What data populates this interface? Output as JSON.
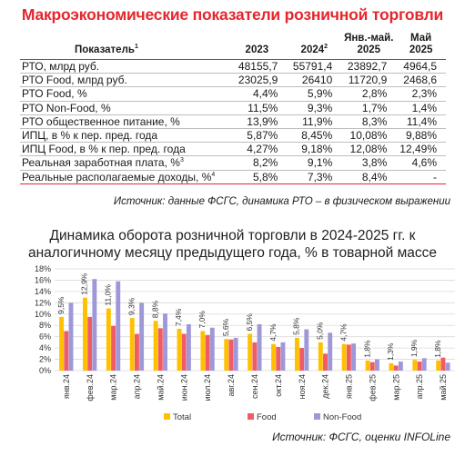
{
  "title": "Макроэкономические показатели розничной торговли",
  "table": {
    "header": {
      "indicator": "Показатель",
      "indicator_sup": "1",
      "c2023": "2023",
      "c2024": "2024",
      "c2024_sup": "2",
      "cjan_l1": "Янв.-май.",
      "cjan_l2": "2025",
      "cmay_l1": "Май",
      "cmay_l2": "2025"
    },
    "rows": [
      {
        "label": "РТО, млрд руб.",
        "sup": "",
        "v2023": "48155,7",
        "v2024": "55791,4",
        "vjan": "23892,7",
        "vmay": "4964,5"
      },
      {
        "label": "РТО Food, млрд руб.",
        "sup": "",
        "v2023": "23025,9",
        "v2024": "26410",
        "vjan": "11720,9",
        "vmay": "2468,6"
      },
      {
        "label": "РТО Food, %",
        "sup": "",
        "v2023": "4,4%",
        "v2024": "5,9%",
        "vjan": "2,8%",
        "vmay": "2,3%"
      },
      {
        "label": "РТО Non-Food, %",
        "sup": "",
        "v2023": "11,5%",
        "v2024": "9,3%",
        "vjan": "1,7%",
        "vmay": "1,4%"
      },
      {
        "label": "РТО общественное питание, %",
        "sup": "",
        "v2023": "13,9%",
        "v2024": "11,9%",
        "vjan": "8,3%",
        "vmay": "11,4%"
      },
      {
        "label": "ИПЦ, в % к пер. пред. года",
        "sup": "",
        "v2023": "5,87%",
        "v2024": "8,45%",
        "vjan": "10,08%",
        "vmay": "9,88%"
      },
      {
        "label": "ИПЦ Food, в % к пер. пред. года",
        "sup": "",
        "v2023": "4,27%",
        "v2024": "9,18%",
        "vjan": "12,08%",
        "vmay": "12,49%"
      },
      {
        "label": "Реальная заработная плата, %",
        "sup": "3",
        "v2023": "8,2%",
        "v2024": "9,1%",
        "vjan": "3,8%",
        "vmay": "4,6%"
      },
      {
        "label": "Реальные располагаемые доходы, %",
        "sup": "4",
        "v2023": "5,8%",
        "v2024": "7,3%",
        "vjan": "8,4%",
        "vmay": "-"
      }
    ],
    "note": "Источник: данные ФСГС, динамика РТО – в физическом выражении"
  },
  "chart_title_l1": "Динамика оборота розничной торговли в 2024-2025 гг. к",
  "chart_title_l2": "аналогичному месяцу предыдущего года, % в товарной массе",
  "source": "Источник: ФСГС, оценки INFOLine",
  "colors": {
    "red": "#e5262d",
    "total": "#ffc000",
    "food": "#f05c65",
    "nonfood": "#9f98d8",
    "grid": "#d9d9d9"
  },
  "chart_data": {
    "type": "bar",
    "categories": [
      "янв.24",
      "фев.24",
      "мар.24",
      "апр.24",
      "май.24",
      "июн.24",
      "июл.24",
      "авг.24",
      "сен.24",
      "окт.24",
      "ноя.24",
      "дек.24",
      "янв.25",
      "фев.25",
      "мар.25",
      "апр.25",
      "май.25"
    ],
    "series": [
      {
        "name": "Total",
        "values": [
          9.5,
          12.9,
          11.0,
          9.3,
          8.8,
          7.4,
          7.0,
          5.6,
          6.5,
          4.7,
          5.8,
          5.0,
          4.7,
          1.8,
          1.3,
          1.9,
          1.8
        ]
      },
      {
        "name": "Food",
        "values": [
          7.0,
          9.5,
          7.9,
          6.5,
          7.5,
          6.5,
          6.3,
          5.5,
          5.0,
          4.2,
          4.0,
          3.0,
          4.6,
          1.5,
          0.9,
          1.6,
          2.3
        ]
      },
      {
        "name": "Non-Food",
        "values": [
          12.0,
          16.2,
          15.8,
          12.0,
          10.1,
          8.2,
          7.6,
          5.8,
          8.2,
          5.0,
          7.3,
          6.7,
          4.8,
          2.0,
          1.6,
          2.2,
          1.4
        ]
      }
    ],
    "data_labels": [
      "9,5%",
      "12,9%",
      "11,0%",
      "9,3%",
      "8,8%",
      "7,4%",
      "7,0%",
      "5,6%",
      "6,5%",
      "4,7%",
      "5,8%",
      "5,0%",
      "4,7%",
      "1,8%",
      "1,3%",
      "1,9%",
      "1,8%"
    ],
    "y_ticks": [
      "0%",
      "2%",
      "4%",
      "6%",
      "8%",
      "10%",
      "12%",
      "14%",
      "16%",
      "18%"
    ],
    "ylim": [
      0,
      18
    ],
    "grid": true,
    "legend": "bottom"
  }
}
